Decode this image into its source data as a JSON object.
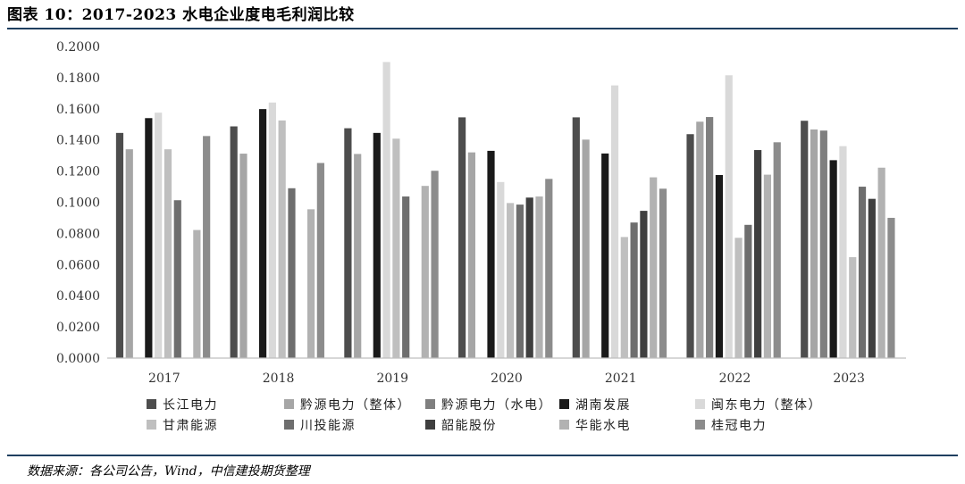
{
  "figure": {
    "title": "图表 10：2017-2023 水电企业度电毛利润比较",
    "source": "数据来源：各公司公告，Wind，中信建投期货整理"
  },
  "colors": {
    "rule": "#1f3f5f",
    "axis": "#bfbfbf",
    "series": [
      "#4d4d4d",
      "#a6a6a6",
      "#7f7f7f",
      "#1a1a1a",
      "#d9d9d9",
      "#bfbfbf",
      "#6e6e6e",
      "#3f3f3f",
      "#b2b2b2",
      "#8c8c8c"
    ]
  },
  "chart_data": {
    "type": "bar",
    "categories": [
      "2017",
      "2018",
      "2019",
      "2020",
      "2021",
      "2022",
      "2023"
    ],
    "ylim": [
      0,
      0.2
    ],
    "yticks": [
      "0.0000",
      "0.0200",
      "0.0400",
      "0.0600",
      "0.0800",
      "0.1000",
      "0.1200",
      "0.1400",
      "0.1600",
      "0.1800",
      "0.2000"
    ],
    "grid": false,
    "legend_position": "bottom",
    "series": [
      {
        "name": "长江电力",
        "values": [
          0.1445,
          0.1487,
          0.1475,
          0.1545,
          0.1545,
          0.1437,
          0.1523
        ]
      },
      {
        "name": "黔源电力（整体）",
        "values": [
          0.134,
          0.1312,
          0.131,
          0.132,
          0.1402,
          0.1517,
          0.1467
        ]
      },
      {
        "name": "黔源电力（水电）",
        "values": [
          null,
          null,
          null,
          null,
          null,
          0.1547,
          0.146
        ]
      },
      {
        "name": "湖南发展",
        "values": [
          0.154,
          0.1598,
          0.1445,
          0.133,
          0.1313,
          0.1175,
          0.127
        ]
      },
      {
        "name": "闽东电力（整体）",
        "values": [
          0.1575,
          0.164,
          0.19,
          0.113,
          0.175,
          0.1815,
          0.136
        ]
      },
      {
        "name": "甘肃能源",
        "values": [
          0.134,
          0.1525,
          0.1408,
          0.0995,
          0.0777,
          0.0772,
          0.0648
        ]
      },
      {
        "name": "川投能源",
        "values": [
          0.1013,
          0.109,
          0.1037,
          0.0985,
          0.087,
          0.0855,
          0.11
        ]
      },
      {
        "name": "韶能股份",
        "values": [
          null,
          null,
          null,
          0.103,
          0.0945,
          0.1335,
          0.1022
        ]
      },
      {
        "name": "华能水电",
        "values": [
          0.0822,
          0.0955,
          0.1105,
          0.1037,
          0.116,
          0.1177,
          0.1222
        ]
      },
      {
        "name": "桂冠电力",
        "values": [
          0.1425,
          0.1252,
          0.1202,
          0.115,
          0.1087,
          0.1385,
          0.09
        ]
      }
    ]
  }
}
